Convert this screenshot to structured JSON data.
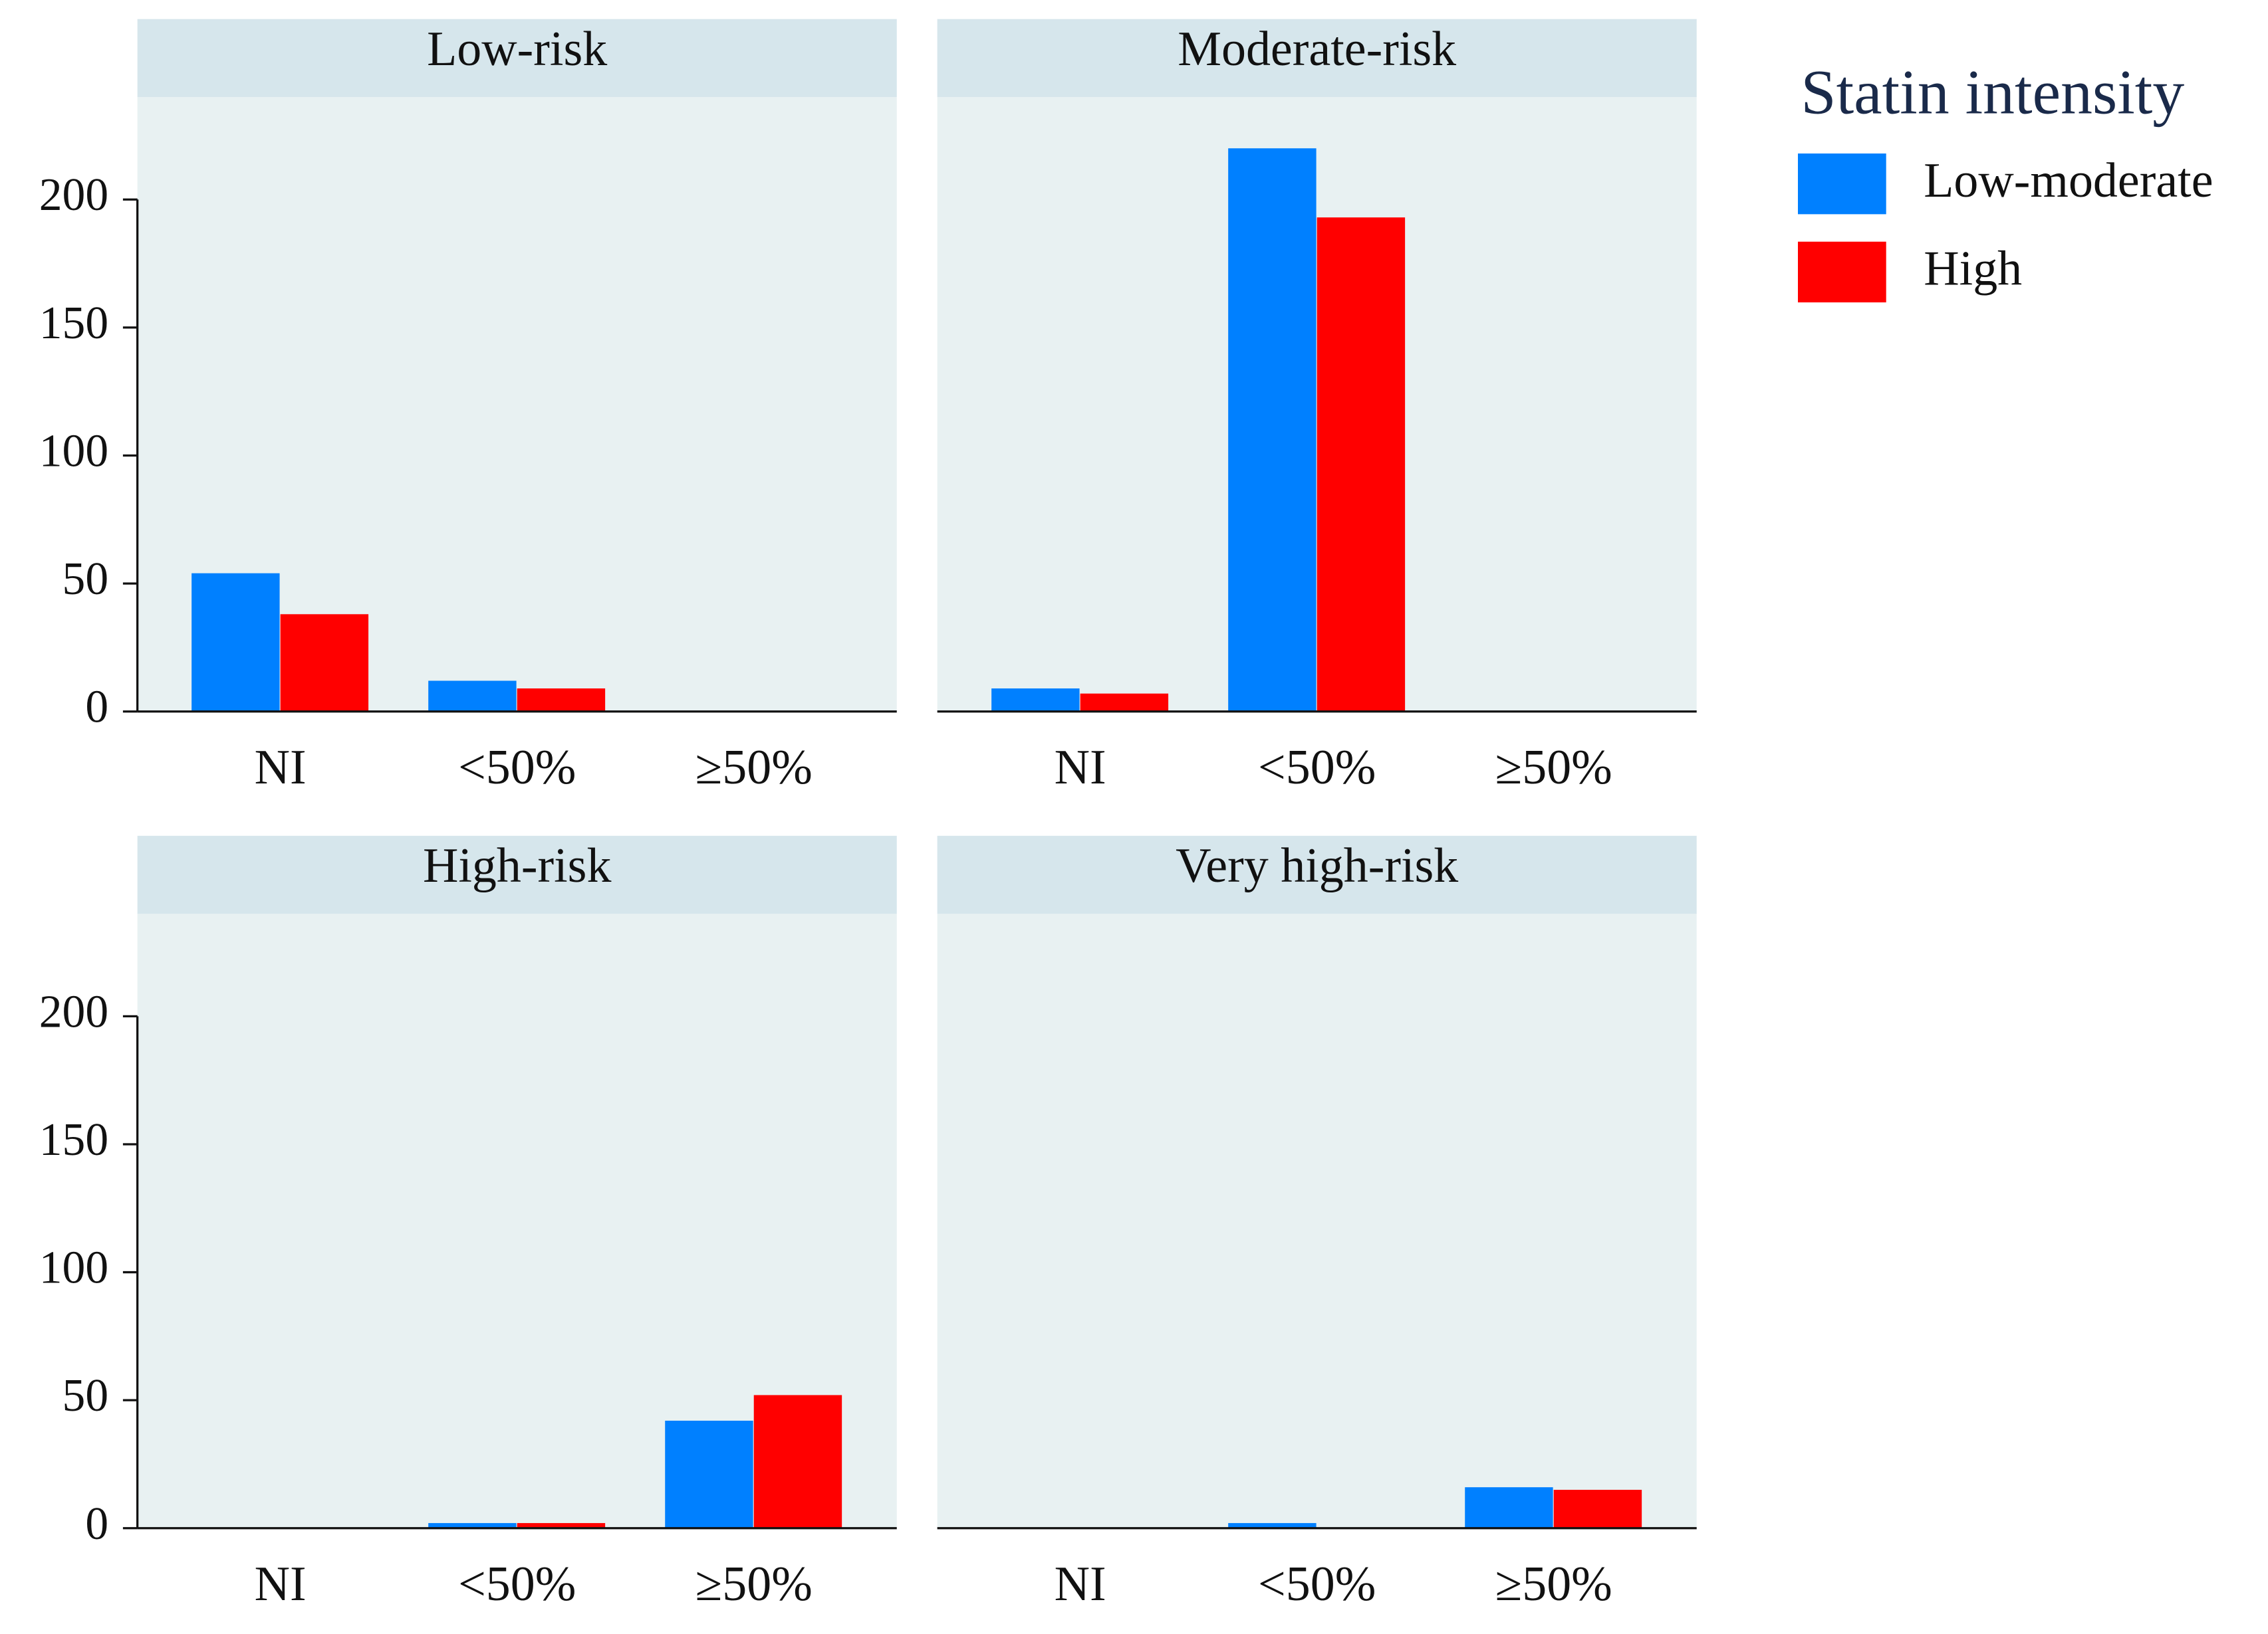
{
  "chart_data": [
    {
      "type": "bar",
      "title": "Low-risk",
      "categories": [
        "NI",
        "<50%",
        "≥50%"
      ],
      "series": [
        {
          "name": "Low-moderate",
          "color": "#0080ff",
          "values": [
            54,
            12,
            0
          ]
        },
        {
          "name": "High",
          "color": "#ff0000",
          "values": [
            38,
            9,
            0
          ]
        }
      ],
      "legend_title": "Statin intensity",
      "ylim": [
        0,
        240
      ],
      "yticks": [
        0,
        50,
        100,
        150,
        200
      ]
    },
    {
      "type": "bar",
      "title": "Moderate-risk",
      "categories": [
        "NI",
        "<50%",
        "≥50%"
      ],
      "series": [
        {
          "color": "#0080ff",
          "values": [
            9,
            220,
            0
          ]
        },
        {
          "color": "#ff0000",
          "values": [
            7,
            193,
            0
          ]
        }
      ],
      "ylim": [
        0,
        240
      ]
    },
    {
      "type": "bar",
      "title": "High-risk",
      "categories": [
        "NI",
        "<50%",
        "≥50%"
      ],
      "series": [
        {
          "color": "#0080ff",
          "values": [
            0,
            2,
            42
          ]
        },
        {
          "color": "#ff0000",
          "values": [
            0,
            2,
            52
          ]
        }
      ],
      "ylim": [
        0,
        240
      ],
      "yticks": [
        0,
        50,
        100,
        150,
        200
      ]
    },
    {
      "type": "bar",
      "title": "Very high-risk",
      "categories": [
        "NI",
        "<50%",
        "≥50%"
      ],
      "series": [
        {
          "color": "#0080ff",
          "values": [
            0,
            2,
            16
          ]
        },
        {
          "color": "#ff0000",
          "values": [
            0,
            0,
            15
          ]
        }
      ],
      "ylim": [
        0,
        240
      ]
    }
  ]
}
